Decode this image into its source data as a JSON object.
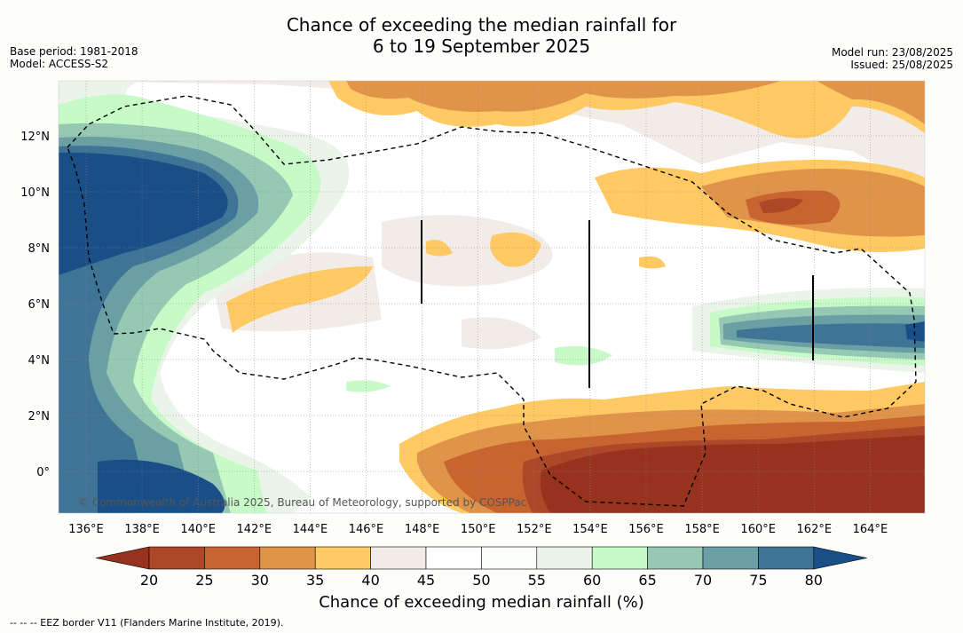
{
  "title_line1": "Chance of exceeding the median rainfall for",
  "title_line2": "6 to 19 September 2025",
  "base_period": "Base period: 1981-2018",
  "model": "Model: ACCESS-S2",
  "model_run": "Model run: 23/08/2025",
  "issued": "Issued: 25/08/2025",
  "copyright": "© Commonwealth of Australia 2025, Bureau of Meteorology, supported by COSPPac",
  "footer": "-- -- -- EEZ border V11 (Flanders Marine Institute, 2019).",
  "lon_labels": [
    "136°E",
    "138°E",
    "140°E",
    "142°E",
    "144°E",
    "146°E",
    "148°E",
    "150°E",
    "152°E",
    "154°E",
    "156°E",
    "158°E",
    "160°E",
    "162°E",
    "164°E"
  ],
  "lat_labels": [
    "12°N",
    "10°N",
    "8°N",
    "6°N",
    "4°N",
    "2°N",
    "0°"
  ],
  "colorbar": {
    "title": "Chance of exceeding median rainfall (%)",
    "ticks": [
      "20",
      "25",
      "30",
      "35",
      "40",
      "45",
      "50",
      "55",
      "60",
      "65",
      "70",
      "75",
      "80"
    ],
    "colors": [
      "#96321e",
      "#ac4828",
      "#c86432",
      "#e0944a",
      "#ffca64",
      "#f1ece8",
      "#ffffff",
      "#fcfefc",
      "#eaf4e8",
      "#c8fac8",
      "#96c8b4",
      "#6aa0a4",
      "#3f7496",
      "#194e86"
    ]
  }
}
